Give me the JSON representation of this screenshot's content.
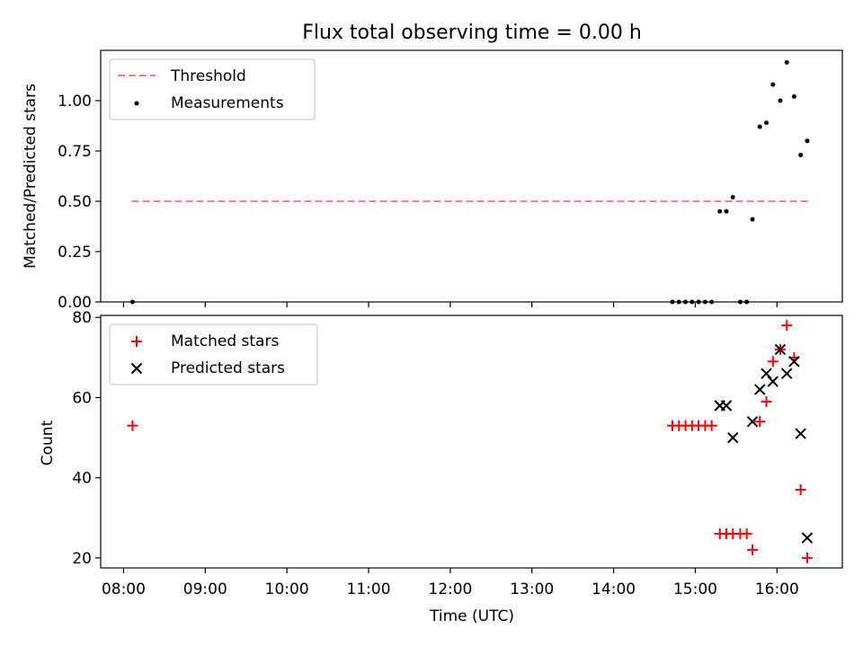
{
  "chart_data": [
    {
      "type": "scatter",
      "title": "Flux total observing time = 0.00 h",
      "xlabel": "",
      "ylabel": "Matched/Predicted stars",
      "xlim": [
        7.72,
        16.8
      ],
      "ylim": [
        0.0,
        1.25
      ],
      "yticks": [
        0.0,
        0.25,
        0.5,
        0.75,
        1.0
      ],
      "ytick_labels": [
        "0.00",
        "0.25",
        "0.50",
        "0.75",
        "1.00"
      ],
      "threshold": {
        "name": "Threshold",
        "value": 0.5,
        "x_range": [
          8.1,
          16.4
        ],
        "color": "#ff7f7f"
      },
      "series": [
        {
          "name": "Measurements",
          "color": "#000000",
          "x": [
            8.11,
            14.72,
            14.8,
            14.88,
            14.96,
            15.04,
            15.12,
            15.2,
            15.3,
            15.38,
            15.46,
            15.55,
            15.63,
            15.7,
            15.79,
            15.87,
            15.95,
            16.04,
            16.12,
            16.21,
            16.29,
            16.37
          ],
          "y": [
            0.0,
            0.0,
            0.0,
            0.0,
            0.0,
            0.0,
            0.0,
            0.0,
            0.45,
            0.45,
            0.52,
            0.0,
            0.0,
            0.41,
            0.87,
            0.89,
            1.08,
            1.0,
            1.19,
            1.02,
            0.73,
            0.8
          ]
        }
      ]
    },
    {
      "type": "scatter",
      "title": "",
      "xlabel": "Time (UTC)",
      "ylabel": "Count",
      "xlim": [
        7.72,
        16.8
      ],
      "ylim": [
        17.5,
        80.5
      ],
      "yticks": [
        20,
        40,
        60,
        80
      ],
      "ytick_labels": [
        "20",
        "40",
        "60",
        "80"
      ],
      "xticks": [
        8,
        9,
        10,
        11,
        12,
        13,
        14,
        15,
        16
      ],
      "xtick_labels": [
        "08:00",
        "09:00",
        "10:00",
        "11:00",
        "12:00",
        "13:00",
        "14:00",
        "15:00",
        "16:00"
      ],
      "series": [
        {
          "name": "Matched stars",
          "marker": "plus",
          "color": "#ff0000",
          "x": [
            8.11,
            14.72,
            14.8,
            14.88,
            14.96,
            15.04,
            15.12,
            15.2,
            15.3,
            15.38,
            15.46,
            15.55,
            15.63,
            15.7,
            15.79,
            15.87,
            15.95,
            16.04,
            16.12,
            16.21,
            16.29,
            16.37
          ],
          "y": [
            53,
            53,
            53,
            53,
            53,
            53,
            53,
            53,
            26,
            26,
            26,
            26,
            26,
            22,
            54,
            59,
            69,
            72,
            78,
            70,
            37,
            20
          ]
        },
        {
          "name": "Predicted stars",
          "marker": "x",
          "color": "#000000",
          "x": [
            15.3,
            15.38,
            15.46,
            15.7,
            15.79,
            15.87,
            15.95,
            16.04,
            16.12,
            16.21,
            16.29,
            16.37
          ],
          "y": [
            58,
            58,
            50,
            54,
            62,
            66,
            64,
            72,
            66,
            69,
            51,
            25
          ]
        }
      ]
    }
  ]
}
